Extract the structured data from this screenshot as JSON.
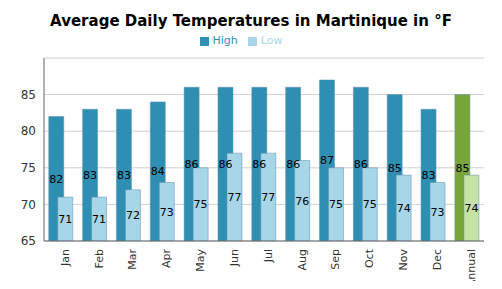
{
  "chart_data": {
    "type": "bar",
    "title": "Average Daily Temperatures in Martinique in °F",
    "categories": [
      "Jan",
      "Feb",
      "Mar",
      "Apr",
      "May",
      "Jun",
      "Jul",
      "Aug",
      "Sep",
      "Oct",
      "Nov",
      "Dec",
      "Annual"
    ],
    "series": [
      {
        "name": "High",
        "color": "#2f8fb3",
        "colors": [
          "#2f8fb3",
          "#2f8fb3",
          "#2f8fb3",
          "#2f8fb3",
          "#2f8fb3",
          "#2f8fb3",
          "#2f8fb3",
          "#2f8fb3",
          "#2f8fb3",
          "#2f8fb3",
          "#2f8fb3",
          "#2f8fb3",
          "#78a53a"
        ],
        "values": [
          82,
          83,
          83,
          84,
          86,
          86,
          86,
          86,
          87,
          86,
          85,
          83,
          85
        ]
      },
      {
        "name": "Low",
        "color": "#a6d6e8",
        "colors": [
          "#a6d6e8",
          "#a6d6e8",
          "#a6d6e8",
          "#a6d6e8",
          "#a6d6e8",
          "#a6d6e8",
          "#a6d6e8",
          "#a6d6e8",
          "#a6d6e8",
          "#a6d6e8",
          "#a6d6e8",
          "#a6d6e8",
          "#c6e2a4"
        ],
        "values": [
          71,
          71,
          72,
          73,
          75,
          77,
          77,
          76,
          75,
          75,
          74,
          73,
          74
        ]
      }
    ],
    "ylim": [
      65,
      90
    ],
    "yticks": [
      65,
      70,
      75,
      80,
      85
    ],
    "grid": true,
    "legend": "top",
    "data_labels": true
  }
}
